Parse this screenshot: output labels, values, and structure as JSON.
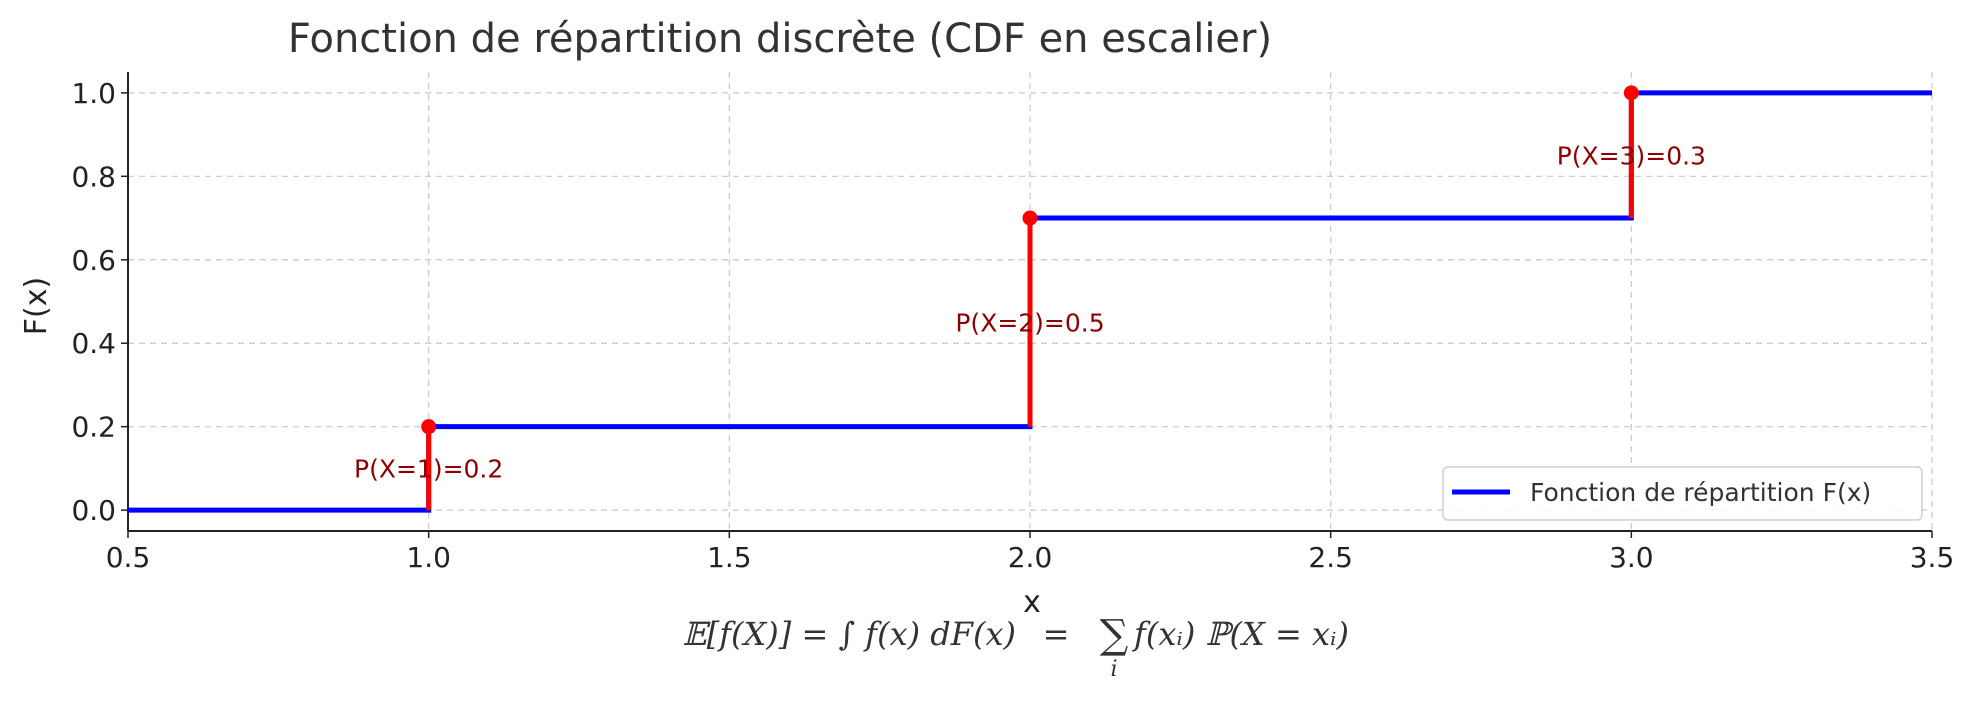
{
  "chart_data": {
    "type": "line",
    "title": "Fonction de répartition discrète (CDF en escalier)",
    "xlabel": "x",
    "ylabel": "F(x)",
    "xlim": [
      0.5,
      3.5
    ],
    "ylim": [
      -0.05,
      1.05
    ],
    "x_ticks": [
      0.5,
      1.0,
      1.5,
      2.0,
      2.5,
      3.0,
      3.5
    ],
    "x_tick_labels": [
      "0.5",
      "1.0",
      "1.5",
      "2.0",
      "2.5",
      "3.0",
      "3.5"
    ],
    "y_ticks": [
      0.0,
      0.2,
      0.4,
      0.6,
      0.8,
      1.0
    ],
    "y_tick_labels": [
      "0.0",
      "0.2",
      "0.4",
      "0.6",
      "0.8",
      "1.0"
    ],
    "grid": true,
    "legend_position": "bottom-right",
    "series": [
      {
        "name": "Fonction de répartition F(x)",
        "style": "step-post",
        "color": "#0000ff",
        "x": [
          0.5,
          1.0,
          2.0,
          3.0,
          3.5
        ],
        "y": [
          0.0,
          0.2,
          0.7,
          1.0,
          1.0
        ]
      }
    ],
    "jumps": [
      {
        "x": 1.0,
        "from": 0.0,
        "to": 0.2,
        "label": "P(X=1)=0.2",
        "label_y": 0.1
      },
      {
        "x": 2.0,
        "from": 0.2,
        "to": 0.7,
        "label": "P(X=2)=0.5",
        "label_y": 0.45
      },
      {
        "x": 3.0,
        "from": 0.7,
        "to": 1.0,
        "label": "P(X=3)=0.3",
        "label_y": 0.85
      }
    ],
    "jump_color": "#ff0000",
    "annotation_color": "#8b0000",
    "formula": {
      "lhs": "𝔼[f(X)] = ∫ f(x) dF(x)",
      "eq": "=",
      "sum": "∑",
      "sum_sub": "i",
      "rhs": "f(xᵢ) ℙ(X = xᵢ)"
    }
  }
}
